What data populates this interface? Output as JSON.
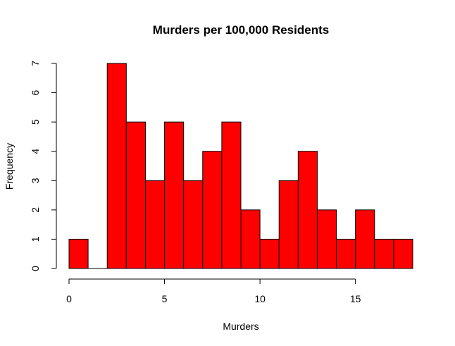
{
  "chart_data": {
    "type": "bar",
    "title": "Murders per 100,000 Residents",
    "xlabel": "Murders",
    "ylabel": "Frequency",
    "bins": [
      {
        "x0": 0,
        "x1": 1,
        "count": 1
      },
      {
        "x0": 1,
        "x1": 2,
        "count": 0
      },
      {
        "x0": 2,
        "x1": 3,
        "count": 7
      },
      {
        "x0": 3,
        "x1": 4,
        "count": 5
      },
      {
        "x0": 4,
        "x1": 5,
        "count": 3
      },
      {
        "x0": 5,
        "x1": 6,
        "count": 5
      },
      {
        "x0": 6,
        "x1": 7,
        "count": 3
      },
      {
        "x0": 7,
        "x1": 8,
        "count": 4
      },
      {
        "x0": 8,
        "x1": 9,
        "count": 5
      },
      {
        "x0": 9,
        "x1": 10,
        "count": 2
      },
      {
        "x0": 10,
        "x1": 11,
        "count": 1
      },
      {
        "x0": 11,
        "x1": 12,
        "count": 3
      },
      {
        "x0": 12,
        "x1": 13,
        "count": 4
      },
      {
        "x0": 13,
        "x1": 14,
        "count": 2
      },
      {
        "x0": 14,
        "x1": 15,
        "count": 1
      },
      {
        "x0": 15,
        "x1": 16,
        "count": 2
      },
      {
        "x0": 16,
        "x1": 17,
        "count": 1
      },
      {
        "x0": 17,
        "x1": 18,
        "count": 1
      }
    ],
    "xlim": [
      0,
      18
    ],
    "ylim": [
      0,
      7
    ],
    "x_ticks": [
      0,
      5,
      10,
      15
    ],
    "y_ticks": [
      0,
      1,
      2,
      3,
      4,
      5,
      6,
      7
    ],
    "bar_color": "#ff0000",
    "grid": false,
    "legend": "none"
  }
}
